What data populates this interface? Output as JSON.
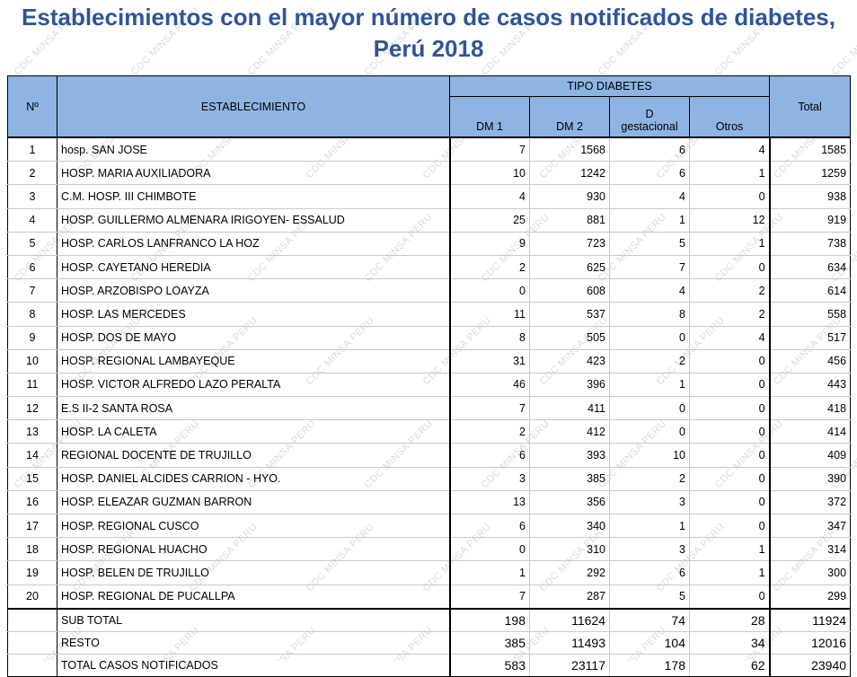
{
  "title": {
    "line1": "Establecimientos con  el mayor número de casos notificados de diabetes,",
    "line2": "Perú 2018"
  },
  "watermark": "CDC MINSA PERU",
  "table": {
    "headers": {
      "no": "Nº",
      "establecimiento": "ESTABLECIMIENTO",
      "tipo": "TIPO  DIABETES",
      "dm1": "DM 1",
      "dm2": "DM 2",
      "d_line1": "D",
      "d_line2": "gestacional",
      "otros": "Otros",
      "total": "Total"
    },
    "rows": [
      {
        "no": "1",
        "est": "hosp. SAN JOSE",
        "dm1": "7",
        "dm2": "1568",
        "dg": "6",
        "otros": "4",
        "total": "1585"
      },
      {
        "no": "2",
        "est": "HOSP. MARIA AUXILIADORA",
        "dm1": "10",
        "dm2": "1242",
        "dg": "6",
        "otros": "1",
        "total": "1259"
      },
      {
        "no": "3",
        "est": "C.M. HOSP. III CHIMBOTE",
        "dm1": "4",
        "dm2": "930",
        "dg": "4",
        "otros": "0",
        "total": "938"
      },
      {
        "no": "4",
        "est": "HOSP. GUILLERMO ALMENARA IRIGOYEN- ESSALUD",
        "dm1": "25",
        "dm2": "881",
        "dg": "1",
        "otros": "12",
        "total": "919"
      },
      {
        "no": "5",
        "est": "HOSP. CARLOS LANFRANCO LA HOZ",
        "dm1": "9",
        "dm2": "723",
        "dg": "5",
        "otros": "1",
        "total": "738"
      },
      {
        "no": "6",
        "est": "HOSP. CAYETANO HEREDIA",
        "dm1": "2",
        "dm2": "625",
        "dg": "7",
        "otros": "0",
        "total": "634"
      },
      {
        "no": "7",
        "est": "HOSP. ARZOBISPO LOAYZA",
        "dm1": "0",
        "dm2": "608",
        "dg": "4",
        "otros": "2",
        "total": "614"
      },
      {
        "no": "8",
        "est": "HOSP. LAS MERCEDES",
        "dm1": "11",
        "dm2": "537",
        "dg": "8",
        "otros": "2",
        "total": "558"
      },
      {
        "no": "9",
        "est": "HOSP. DOS DE MAYO",
        "dm1": "8",
        "dm2": "505",
        "dg": "0",
        "otros": "4",
        "total": "517"
      },
      {
        "no": "10",
        "est": "HOSP. REGIONAL LAMBAYEQUE",
        "dm1": "31",
        "dm2": "423",
        "dg": "2",
        "otros": "0",
        "total": "456"
      },
      {
        "no": "11",
        "est": "HOSP. VICTOR ALFREDO LAZO PERALTA",
        "dm1": "46",
        "dm2": "396",
        "dg": "1",
        "otros": "0",
        "total": "443"
      },
      {
        "no": "12",
        "est": "E.S II-2 SANTA ROSA",
        "dm1": "7",
        "dm2": "411",
        "dg": "0",
        "otros": "0",
        "total": "418"
      },
      {
        "no": "13",
        "est": "HOSP. LA CALETA",
        "dm1": "2",
        "dm2": "412",
        "dg": "0",
        "otros": "0",
        "total": "414"
      },
      {
        "no": "14",
        "est": "REGIONAL DOCENTE DE TRUJILLO",
        "dm1": "6",
        "dm2": "393",
        "dg": "10",
        "otros": "0",
        "total": "409"
      },
      {
        "no": "15",
        "est": "HOSP. DANIEL ALCIDES CARRION - HYO.",
        "dm1": "3",
        "dm2": "385",
        "dg": "2",
        "otros": "0",
        "total": "390"
      },
      {
        "no": "16",
        "est": "HOSP. ELEAZAR GUZMAN BARRON",
        "dm1": "13",
        "dm2": "356",
        "dg": "3",
        "otros": "0",
        "total": "372"
      },
      {
        "no": "17",
        "est": "HOSP. REGIONAL CUSCO",
        "dm1": "6",
        "dm2": "340",
        "dg": "1",
        "otros": "0",
        "total": "347"
      },
      {
        "no": "18",
        "est": "HOSP. REGIONAL HUACHO",
        "dm1": "0",
        "dm2": "310",
        "dg": "3",
        "otros": "1",
        "total": "314"
      },
      {
        "no": "19",
        "est": "HOSP. BELEN DE TRUJILLO",
        "dm1": "1",
        "dm2": "292",
        "dg": "6",
        "otros": "1",
        "total": "300"
      },
      {
        "no": "20",
        "est": "HOSP. REGIONAL DE PUCALLPA",
        "dm1": "7",
        "dm2": "287",
        "dg": "5",
        "otros": "0",
        "total": "299"
      }
    ],
    "summary": [
      {
        "no": "",
        "est": "SUB TOTAL",
        "dm1": "198",
        "dm2": "11624",
        "dg": "74",
        "otros": "28",
        "total": "11924"
      },
      {
        "no": "",
        "est": "RESTO",
        "dm1": "385",
        "dm2": "11493",
        "dg": "104",
        "otros": "34",
        "total": "12016"
      },
      {
        "no": "",
        "est": "TOTAL CASOS NOTIFICADOS",
        "dm1": "583",
        "dm2": "23117",
        "dg": "178",
        "otros": "62",
        "total": "23940"
      }
    ]
  }
}
